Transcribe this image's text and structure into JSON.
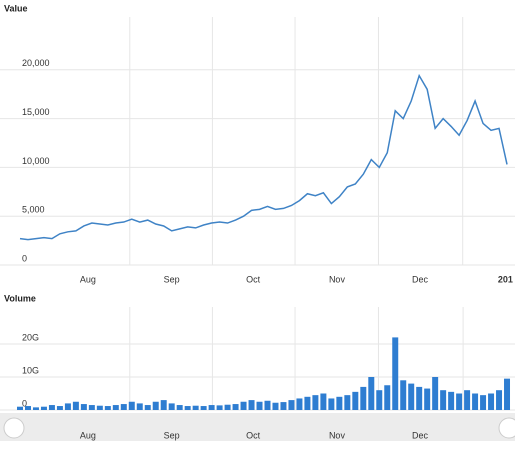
{
  "chart_data": [
    {
      "type": "line",
      "title": "Value",
      "color": "#3f83c6",
      "values": [
        2700,
        2600,
        2700,
        2800,
        2700,
        3200,
        3400,
        3500,
        4000,
        4300,
        4200,
        4100,
        4300,
        4400,
        4700,
        4400,
        4600,
        4200,
        4000,
        3500,
        3700,
        3900,
        3800,
        4100,
        4300,
        4400,
        4300,
        4600,
        5000,
        5600,
        5700,
        6000,
        5700,
        5800,
        6100,
        6600,
        7300,
        7100,
        7400,
        6300,
        7000,
        8000,
        8300,
        9300,
        10800,
        10000,
        11500,
        15800,
        15000,
        16800,
        19400,
        18000,
        14000,
        15000,
        14200,
        13300,
        14800,
        16800,
        14500,
        13800,
        14000,
        10300
      ],
      "xlim": [
        0,
        62
      ],
      "xticks": [
        {
          "value": 8.5,
          "label": "Aug"
        },
        {
          "value": 19,
          "label": "Sep"
        },
        {
          "value": 29.2,
          "label": "Oct"
        },
        {
          "value": 39.7,
          "label": "Nov"
        },
        {
          "value": 50.1,
          "label": "Dec"
        },
        {
          "value": 60.8,
          "label": "201"
        }
      ],
      "ylim": [
        0,
        25000
      ],
      "yticks": [
        0,
        {
          "value": 5000,
          "label": "5,000"
        },
        {
          "value": 10000,
          "label": "10,000"
        },
        {
          "value": 15000,
          "label": "15,000"
        },
        {
          "value": 20000,
          "label": "20,000"
        }
      ],
      "grid": true
    },
    {
      "type": "bar",
      "title": "Volume",
      "color": "#2e7dd1",
      "values": [
        1,
        1.2,
        0.8,
        1,
        1.5,
        1.2,
        2,
        2.5,
        1.8,
        1.5,
        1.3,
        1.2,
        1.5,
        1.8,
        2.5,
        2,
        1.5,
        2.5,
        3,
        2,
        1.5,
        1.2,
        1.3,
        1.2,
        1.5,
        1.4,
        1.6,
        1.8,
        2.5,
        3,
        2.5,
        2.8,
        2.2,
        2.4,
        3,
        3.5,
        4,
        4.5,
        5,
        3.5,
        4,
        4.5,
        5.5,
        7,
        10,
        6,
        7.5,
        22,
        9,
        8,
        7,
        6.5,
        10,
        6,
        5.5,
        5,
        6,
        5,
        4.5,
        5,
        6,
        9.5
      ],
      "xlim": [
        0,
        62
      ],
      "xticks": [
        {
          "value": 8.5,
          "label": "Aug"
        },
        {
          "value": 19,
          "label": "Sep"
        },
        {
          "value": 29.2,
          "label": "Oct"
        },
        {
          "value": 39.7,
          "label": "Nov"
        },
        {
          "value": 50.1,
          "label": "Dec"
        }
      ],
      "ylim": [
        0,
        30
      ],
      "yticks": [
        0,
        {
          "value": 10,
          "label": "10G"
        },
        {
          "value": 20,
          "label": "20G"
        }
      ],
      "grid": true
    }
  ]
}
